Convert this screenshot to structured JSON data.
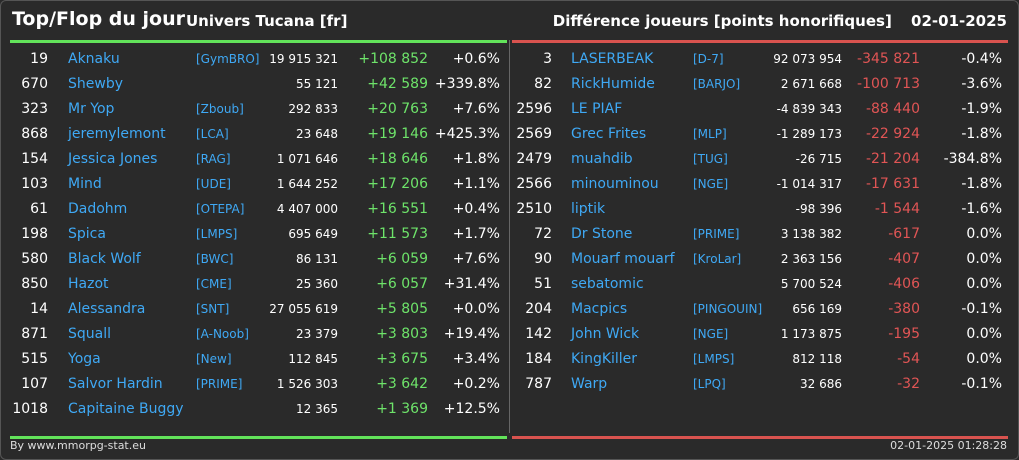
{
  "header": {
    "title": "Top/Flop du jour",
    "subtitle": "Univers Tucana [fr]",
    "metric": "Différence joueurs [points honorifiques]",
    "date": "02-01-2025"
  },
  "top": [
    {
      "rank": "19",
      "name": "Aknaku",
      "tag": "[GymBRO]",
      "points": "19 915 321",
      "diff": "+108 852",
      "pct": "+0.6%"
    },
    {
      "rank": "670",
      "name": "Shewby",
      "tag": "",
      "points": "55 121",
      "diff": "+42 589",
      "pct": "+339.8%"
    },
    {
      "rank": "323",
      "name": "Mr Yop",
      "tag": "[Zboub]",
      "points": "292 833",
      "diff": "+20 763",
      "pct": "+7.6%"
    },
    {
      "rank": "868",
      "name": "jeremylemont",
      "tag": "[LCA]",
      "points": "23 648",
      "diff": "+19 146",
      "pct": "+425.3%"
    },
    {
      "rank": "154",
      "name": "Jessica Jones",
      "tag": "[RAG]",
      "points": "1 071 646",
      "diff": "+18 646",
      "pct": "+1.8%"
    },
    {
      "rank": "103",
      "name": "Mind",
      "tag": "[UDE]",
      "points": "1 644 252",
      "diff": "+17 206",
      "pct": "+1.1%"
    },
    {
      "rank": "61",
      "name": "Dadohm",
      "tag": "[OTEPA]",
      "points": "4 407 000",
      "diff": "+16 551",
      "pct": "+0.4%"
    },
    {
      "rank": "198",
      "name": "Spica",
      "tag": "[LMPS]",
      "points": "695 649",
      "diff": "+11 573",
      "pct": "+1.7%"
    },
    {
      "rank": "580",
      "name": "Black Wolf",
      "tag": "[BWC]",
      "points": "86 131",
      "diff": "+6 059",
      "pct": "+7.6%"
    },
    {
      "rank": "850",
      "name": "Hazot",
      "tag": "[CME]",
      "points": "25 360",
      "diff": "+6 057",
      "pct": "+31.4%"
    },
    {
      "rank": "14",
      "name": "Alessandra",
      "tag": "[SNT]",
      "points": "27 055 619",
      "diff": "+5 805",
      "pct": "+0.0%"
    },
    {
      "rank": "871",
      "name": "Squall",
      "tag": "[A-Noob]",
      "points": "23 379",
      "diff": "+3 803",
      "pct": "+19.4%"
    },
    {
      "rank": "515",
      "name": "Yoga",
      "tag": "[New]",
      "points": "112 845",
      "diff": "+3 675",
      "pct": "+3.4%"
    },
    {
      "rank": "107",
      "name": "Salvor Hardin",
      "tag": "[PRIME]",
      "points": "1 526 303",
      "diff": "+3 642",
      "pct": "+0.2%"
    },
    {
      "rank": "1018",
      "name": "Capitaine Buggy",
      "tag": "",
      "points": "12 365",
      "diff": "+1 369",
      "pct": "+12.5%"
    }
  ],
  "flop": [
    {
      "rank": "3",
      "name": "LASERBEAK",
      "tag": "[D-7]",
      "points": "92 073 954",
      "diff": "-345 821",
      "pct": "-0.4%"
    },
    {
      "rank": "82",
      "name": "RickHumide",
      "tag": "[BARJO]",
      "points": "2 671 668",
      "diff": "-100 713",
      "pct": "-3.6%"
    },
    {
      "rank": "2596",
      "name": "LE PIAF",
      "tag": "",
      "points": "-4 839 343",
      "diff": "-88 440",
      "pct": "-1.9%"
    },
    {
      "rank": "2569",
      "name": "Grec Frites",
      "tag": "[MLP]",
      "points": "-1 289 173",
      "diff": "-22 924",
      "pct": "-1.8%"
    },
    {
      "rank": "2479",
      "name": "muahdib",
      "tag": "[TUG]",
      "points": "-26 715",
      "diff": "-21 204",
      "pct": "-384.8%"
    },
    {
      "rank": "2566",
      "name": "minouminou",
      "tag": "[NGE]",
      "points": "-1 014 317",
      "diff": "-17 631",
      "pct": "-1.8%"
    },
    {
      "rank": "2510",
      "name": "liptik",
      "tag": "",
      "points": "-98 396",
      "diff": "-1 544",
      "pct": "-1.6%"
    },
    {
      "rank": "72",
      "name": "Dr Stone",
      "tag": "[PRIME]",
      "points": "3 138 382",
      "diff": "-617",
      "pct": "0.0%"
    },
    {
      "rank": "90",
      "name": "Mouarf mouarf",
      "tag": "[KroLar]",
      "points": "2 363 156",
      "diff": "-407",
      "pct": "0.0%"
    },
    {
      "rank": "51",
      "name": "sebatomic",
      "tag": "",
      "points": "5 700 524",
      "diff": "-406",
      "pct": "0.0%"
    },
    {
      "rank": "204",
      "name": "Macpics",
      "tag": "[PINGOUIN]",
      "points": "656 169",
      "diff": "-380",
      "pct": "-0.1%"
    },
    {
      "rank": "142",
      "name": "John Wick",
      "tag": "[NGE]",
      "points": "1 173 875",
      "diff": "-195",
      "pct": "0.0%"
    },
    {
      "rank": "184",
      "name": "KingKiller",
      "tag": "[LMPS]",
      "points": "812 118",
      "diff": "-54",
      "pct": "0.0%"
    },
    {
      "rank": "787",
      "name": "Warp",
      "tag": "[LPQ]",
      "points": "32 686",
      "diff": "-32",
      "pct": "-0.1%"
    }
  ],
  "footer": {
    "credit": "By www.mmorpg-stat.eu",
    "timestamp": "02-01-2025 01:28:28"
  },
  "colors": {
    "accent_top": "#62e35a",
    "accent_flop": "#d9534f",
    "link": "#3fa9f5",
    "background": "#2a2a2a"
  }
}
